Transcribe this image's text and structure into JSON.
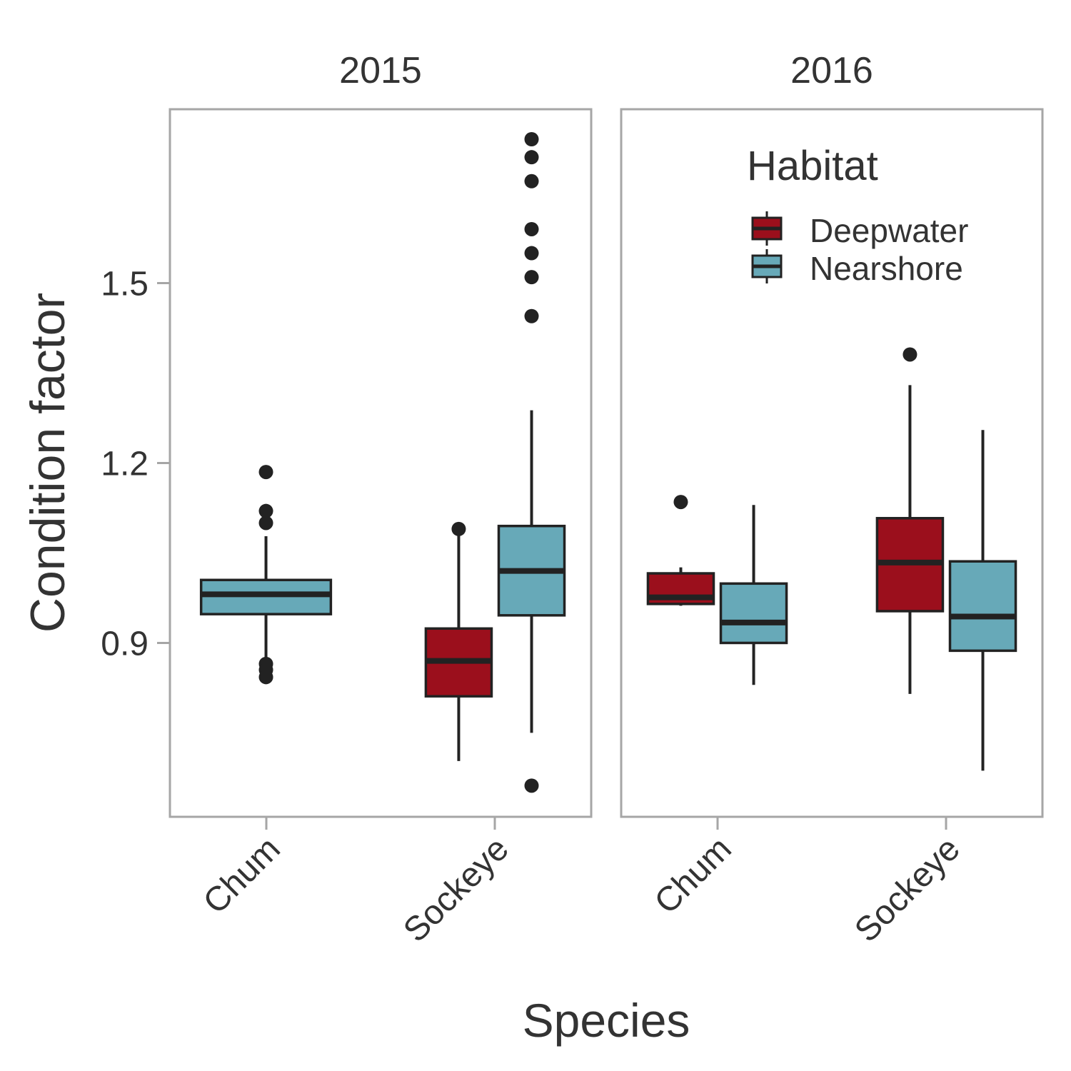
{
  "chart_data": {
    "type": "boxplot",
    "xlabel": "Species",
    "ylabel": "Condition factor",
    "yticks": [
      0.9,
      1.2,
      1.5
    ],
    "ytick_labels": [
      "0.9",
      "1.2",
      "1.5"
    ],
    "ylim": [
      0.61,
      1.79
    ],
    "grid": false,
    "legend_position": "top-right inside 2016 panel",
    "legend": {
      "title": "Habitat",
      "entries": [
        {
          "name": "Deepwater",
          "color": "#9b0f1c"
        },
        {
          "name": "Nearshore",
          "color": "#67a9b8"
        }
      ]
    },
    "categories": [
      "Chum",
      "Sockeye"
    ],
    "panels": [
      {
        "title": "2015",
        "boxes": [
          {
            "species": "Chum",
            "habitat": "Nearshore",
            "whisker_low": 0.862,
            "q1": 0.948,
            "median": 0.981,
            "q3": 1.005,
            "whisker_high": 1.078,
            "outliers": [
              1.185,
              1.12,
              1.1,
              0.865,
              0.855,
              0.843
            ]
          },
          {
            "species": "Sockeye",
            "habitat": "Deepwater",
            "whisker_low": 0.703,
            "q1": 0.811,
            "median": 0.87,
            "q3": 0.924,
            "whisker_high": 1.09,
            "outliers": [
              1.09
            ]
          },
          {
            "species": "Sockeye",
            "habitat": "Nearshore",
            "whisker_low": 0.75,
            "q1": 0.946,
            "median": 1.02,
            "q3": 1.095,
            "whisker_high": 1.288,
            "outliers": [
              1.74,
              1.71,
              1.67,
              1.59,
              1.55,
              1.51,
              1.445,
              0.662
            ]
          }
        ]
      },
      {
        "title": "2016",
        "boxes": [
          {
            "species": "Chum",
            "habitat": "Deepwater",
            "whisker_low": 0.962,
            "q1": 0.965,
            "median": 0.976,
            "q3": 1.016,
            "whisker_high": 1.026,
            "outliers": [
              1.135
            ]
          },
          {
            "species": "Chum",
            "habitat": "Nearshore",
            "whisker_low": 0.83,
            "q1": 0.9,
            "median": 0.934,
            "q3": 0.999,
            "whisker_high": 1.13,
            "outliers": []
          },
          {
            "species": "Sockeye",
            "habitat": "Deepwater",
            "whisker_low": 0.815,
            "q1": 0.953,
            "median": 1.034,
            "q3": 1.108,
            "whisker_high": 1.33,
            "outliers": [
              1.381
            ]
          },
          {
            "species": "Sockeye",
            "habitat": "Nearshore",
            "whisker_low": 0.687,
            "q1": 0.887,
            "median": 0.944,
            "q3": 1.036,
            "whisker_high": 1.255,
            "outliers": []
          }
        ]
      }
    ]
  }
}
